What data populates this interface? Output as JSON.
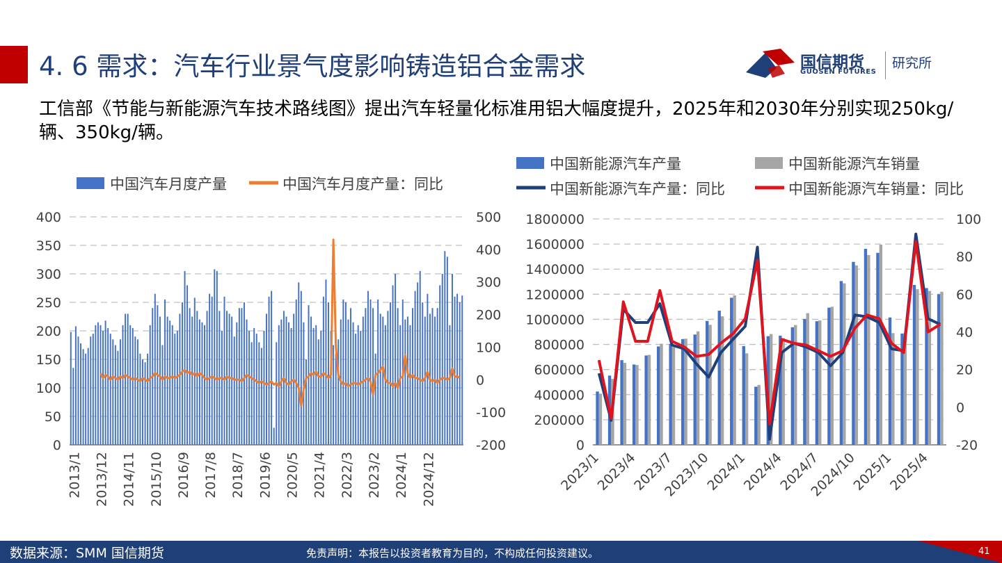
{
  "header": {
    "title": "4. 6 需求：汽车行业景气度影响铸造铝合金需求",
    "logo_cn": "国信期货",
    "logo_en": "GUOSEN FUTURES",
    "institute": "研究所",
    "subtitle": "工信部《节能与新能源汽车技术路线图》提出汽车轻量化标准用铝大幅度提升，2025年和2030年分别实现250kg/辆、350kg/辆。"
  },
  "footer": {
    "source": "数据来源：SMM 国信期货",
    "disclaimer": "免责声明：本报告以投资者教育为目的，不构成任何投资建议。",
    "page": "41"
  },
  "colors": {
    "title_blue": "#1f3f79",
    "accent_red": "#c00000",
    "bar_blue": "#4472c4",
    "bar_gray": "#a5a5a5",
    "line_orange": "#ed7d31",
    "line_navy": "#1f3f79",
    "line_red": "#e0141e"
  },
  "chart_data": [
    {
      "type": "bar",
      "combo": "bar+line",
      "title": "",
      "legend_position": "top",
      "x_start": "2013/1",
      "x_end": "2025/5",
      "x_ticks": [
        "2013/1",
        "2013/12",
        "2014/11",
        "2015/10",
        "2016/9",
        "2017/8",
        "2018/7",
        "2019/6",
        "2020/5",
        "2021/4",
        "2022/3",
        "2023/2",
        "2024/1",
        "2024/12"
      ],
      "ylim_left": [
        0,
        400
      ],
      "yticks_left": [
        "0",
        "50",
        "100",
        "150",
        "200",
        "250",
        "300",
        "350",
        "400"
      ],
      "ylim_right": [
        -200,
        500
      ],
      "yticks_right": [
        "-200",
        "-100",
        "0",
        "100",
        "200",
        "300",
        "400",
        "500"
      ],
      "grid": true,
      "series": [
        {
          "name": "中国汽车月度产量",
          "axis": "left",
          "kind": "bar",
          "values": [
            198,
            135,
            208,
            190,
            178,
            168,
            160,
            170,
            190,
            195,
            210,
            215,
            210,
            200,
            218,
            205,
            195,
            185,
            175,
            165,
            185,
            210,
            230,
            230,
            210,
            205,
            190,
            185,
            160,
            150,
            145,
            160,
            210,
            240,
            265,
            245,
            225,
            175,
            255,
            225,
            218,
            210,
            195,
            200,
            230,
            250,
            305,
            280,
            240,
            225,
            258,
            235,
            220,
            215,
            210,
            235,
            265,
            260,
            308,
            305,
            235,
            200,
            260,
            235,
            230,
            225,
            190,
            215,
            240,
            240,
            250,
            220,
            200,
            180,
            205,
            195,
            180,
            170,
            200,
            230,
            260,
            270,
            30,
            180,
            210,
            220,
            235,
            225,
            215,
            205,
            230,
            255,
            285,
            270,
            215,
            150,
            245,
            225,
            205,
            210,
            185,
            200,
            260,
            290,
            250,
            200,
            175,
            160,
            185,
            220,
            255,
            250,
            220,
            240,
            215,
            195,
            210,
            200,
            225,
            240,
            270,
            255,
            240,
            160,
            255,
            230,
            225,
            210,
            235,
            250,
            280,
            300,
            240,
            210,
            255,
            220,
            225,
            210,
            240,
            270,
            285,
            305,
            250,
            225,
            265,
            230,
            240,
            225,
            240,
            280,
            300,
            340,
            330,
            210,
            300,
            260,
            265,
            250,
            262
          ]
        },
        {
          "name": "中国汽车月度产量：同比",
          "axis": "right",
          "kind": "line",
          "values": [
            null,
            null,
            null,
            null,
            null,
            null,
            null,
            null,
            null,
            null,
            null,
            null,
            20,
            5,
            15,
            10,
            0,
            10,
            5,
            0,
            10,
            5,
            15,
            10,
            5,
            0,
            5,
            0,
            -5,
            5,
            0,
            -5,
            5,
            10,
            20,
            15,
            10,
            0,
            10,
            5,
            5,
            10,
            5,
            10,
            15,
            25,
            30,
            20,
            25,
            15,
            20,
            10,
            20,
            15,
            5,
            0,
            5,
            10,
            5,
            0,
            5,
            5,
            0,
            10,
            5,
            5,
            0,
            0,
            0,
            -5,
            5,
            15,
            10,
            5,
            0,
            -5,
            -10,
            -5,
            -10,
            -15,
            -10,
            -5,
            -15,
            -10,
            -20,
            -5,
            5,
            -10,
            -15,
            -5,
            0,
            -10,
            -25,
            -80,
            -30,
            5,
            10,
            20,
            15,
            25,
            10,
            10,
            20,
            15,
            5,
            15,
            430,
            100,
            15,
            -5,
            -15,
            -10,
            -20,
            -15,
            -10,
            -10,
            -15,
            -10,
            -5,
            0,
            5,
            -5,
            -45,
            15,
            20,
            30,
            40,
            0,
            -10,
            -10,
            -20,
            -10,
            -25,
            5,
            10,
            75,
            20,
            5,
            15,
            5,
            5,
            0,
            -5,
            5,
            25,
            0,
            -5,
            0,
            -10,
            0,
            5,
            5,
            0,
            5,
            35,
            10,
            10,
            5
          ]
        }
      ]
    },
    {
      "type": "bar",
      "combo": "bar+line",
      "title": "",
      "legend_position": "top",
      "x_start": "2023/1",
      "x_end": "2025/5",
      "x_ticks": [
        "2023/1",
        "2023/4",
        "2023/7",
        "2023/10",
        "2024/1",
        "2024/4",
        "2024/7",
        "2024/10",
        "2025/1",
        "2025/4"
      ],
      "ylim_left": [
        0,
        1800000
      ],
      "yticks_left": [
        "0",
        "200000",
        "400000",
        "600000",
        "800000",
        "1000000",
        "1200000",
        "1400000",
        "1600000",
        "1800000"
      ],
      "ylim_right": [
        -20,
        100
      ],
      "yticks_right": [
        "-20",
        "0",
        "20",
        "40",
        "60",
        "80",
        "100"
      ],
      "grid": true,
      "series": [
        {
          "name": "中国新能源汽车产量",
          "axis": "left",
          "kind": "bar",
          "values": [
            425000,
            552000,
            675000,
            640000,
            712000,
            784000,
            805000,
            843000,
            879000,
            987000,
            1069000,
            1172000,
            787000,
            463000,
            866000,
            870000,
            937000,
            1003000,
            985000,
            1093000,
            1305000,
            1458000,
            1562000,
            1530000,
            1015000,
            887000,
            1274000,
            1249000,
            1200000
          ]
        },
        {
          "name": "中国新能源汽车销量",
          "axis": "left",
          "kind": "bar",
          "values": [
            408000,
            525000,
            653000,
            636000,
            717000,
            806000,
            780000,
            846000,
            904000,
            956000,
            1024000,
            1191000,
            729000,
            477000,
            883000,
            850000,
            955000,
            1049000,
            991000,
            1100000,
            1287000,
            1430000,
            1512000,
            1595000,
            890000,
            893000,
            1240000,
            1226000,
            1220000
          ]
        },
        {
          "name": "中国新能源汽车产量：同比",
          "axis": "right",
          "kind": "line",
          "values": [
            18,
            -7,
            52,
            45,
            45,
            55,
            33,
            31,
            23,
            16,
            29,
            36,
            43,
            85,
            -17,
            29,
            34,
            32,
            29,
            22,
            29,
            49,
            48,
            45,
            31,
            30,
            92,
            47,
            44
          ]
        },
        {
          "name": "中国新能源汽车销量：同比",
          "axis": "right",
          "kind": "line",
          "values": [
            25,
            -6,
            56,
            35,
            35,
            62,
            35,
            32,
            27,
            28,
            34,
            39,
            47,
            78,
            -9,
            36,
            34,
            33,
            30,
            27,
            30,
            42,
            49,
            47,
            34,
            29,
            88,
            40,
            44
          ]
        }
      ]
    }
  ]
}
